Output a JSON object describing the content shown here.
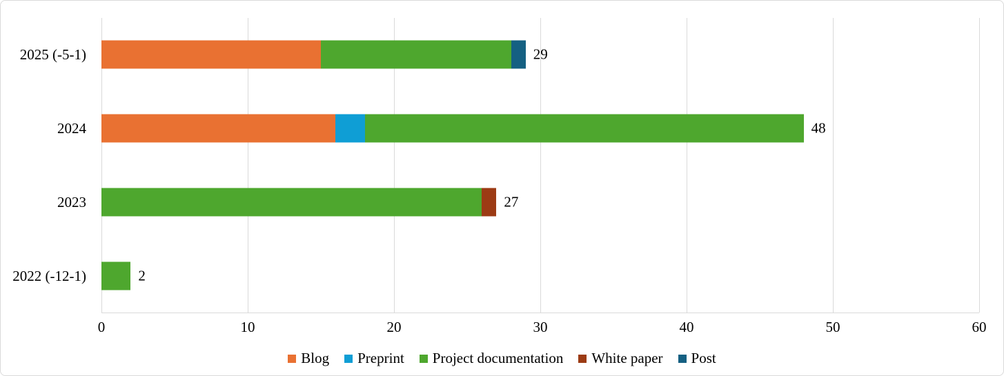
{
  "chart_data": {
    "type": "bar",
    "orientation": "horizontal",
    "stacked": true,
    "title": "",
    "xlabel": "",
    "ylabel": "",
    "categories": [
      "2025 (-5-1)",
      "2024",
      "2023",
      "2022 (-12-1)"
    ],
    "series": [
      {
        "name": "Blog",
        "color": "#E97132",
        "values": [
          15,
          16,
          0,
          0
        ]
      },
      {
        "name": "Preprint",
        "color": "#0F9ED5",
        "values": [
          0,
          2,
          0,
          0
        ]
      },
      {
        "name": "Project documentation",
        "color": "#4EA72E",
        "values": [
          13,
          30,
          26,
          2
        ]
      },
      {
        "name": "White paper",
        "color": "#9C3B14",
        "values": [
          0,
          0,
          1,
          0
        ]
      },
      {
        "name": "Post",
        "color": "#156082",
        "values": [
          1,
          0,
          0,
          0
        ]
      }
    ],
    "totals": [
      29,
      48,
      27,
      2
    ],
    "x_ticks": [
      0,
      10,
      20,
      30,
      40,
      50,
      60
    ],
    "xlim": [
      0,
      60
    ],
    "grid": true,
    "gridline_color": "#D9D9D9",
    "legend_position": "bottom"
  }
}
